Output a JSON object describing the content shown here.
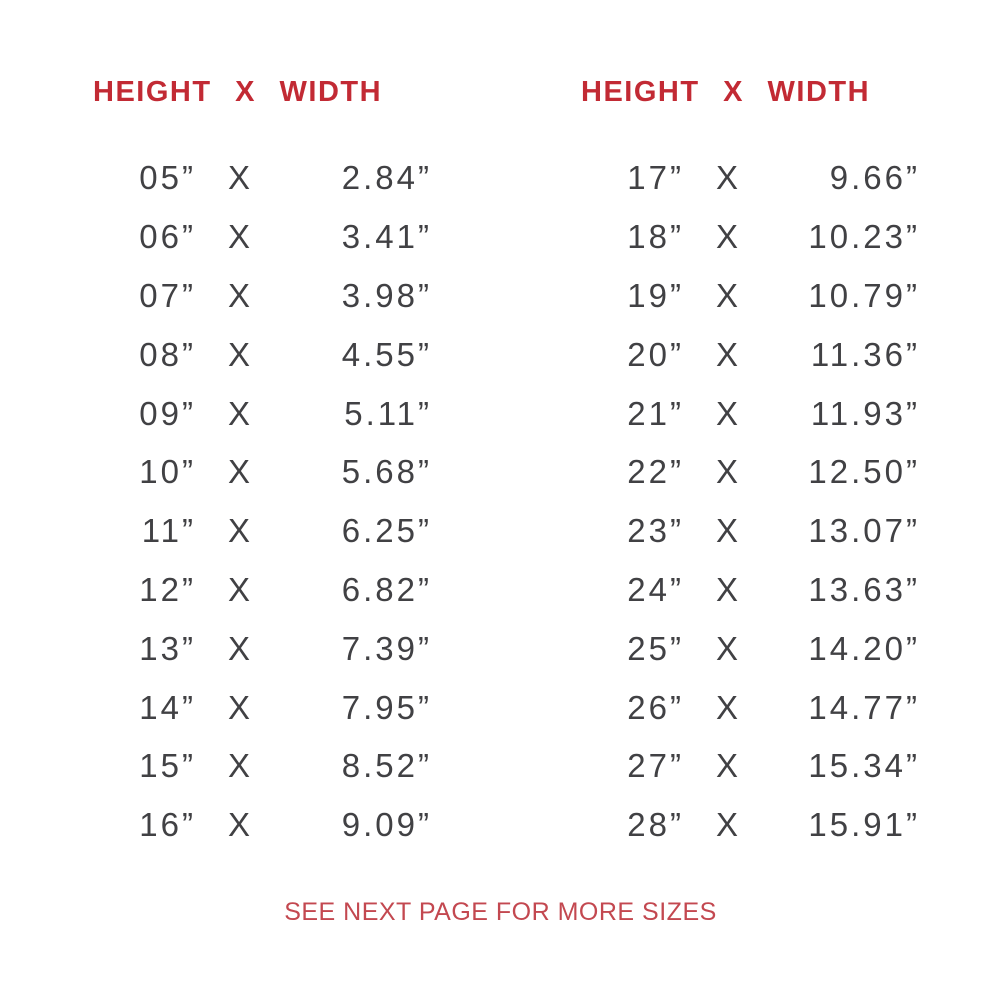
{
  "page": {
    "colors": {
      "background": "#ffffff",
      "accent_red": "#c22a34",
      "footer_red": "#c34850",
      "text_color": "#414144"
    }
  },
  "tables": [
    {
      "header": "HEIGHT X WIDTH",
      "x_label": "X",
      "rows": [
        [
          "05”",
          "2.84”"
        ],
        [
          "06”",
          "3.41”"
        ],
        [
          "07”",
          "3.98”"
        ],
        [
          "08”",
          "4.55”"
        ],
        [
          "09”",
          "5.11”"
        ],
        [
          "10”",
          "5.68”"
        ],
        [
          "11”",
          "6.25”"
        ],
        [
          "12”",
          "6.82”"
        ],
        [
          "13”",
          "7.39”"
        ],
        [
          "14”",
          "7.95”"
        ],
        [
          "15”",
          "8.52”"
        ],
        [
          "16”",
          "9.09”"
        ]
      ]
    },
    {
      "header": "HEIGHT X WIDTH",
      "x_label": "X",
      "rows": [
        [
          "17”",
          "9.66”"
        ],
        [
          "18”",
          "10.23”"
        ],
        [
          "19”",
          "10.79”"
        ],
        [
          "20”",
          "11.36”"
        ],
        [
          "21”",
          "11.93”"
        ],
        [
          "22”",
          "12.50”"
        ],
        [
          "23”",
          "13.07”"
        ],
        [
          "24”",
          "13.63”"
        ],
        [
          "25”",
          "14.20”"
        ],
        [
          "26”",
          "14.77”"
        ],
        [
          "27”",
          "15.34”"
        ],
        [
          "28”",
          "15.91”"
        ]
      ]
    }
  ],
  "footer": {
    "text": "SEE NEXT PAGE FOR MORE SIZES"
  }
}
